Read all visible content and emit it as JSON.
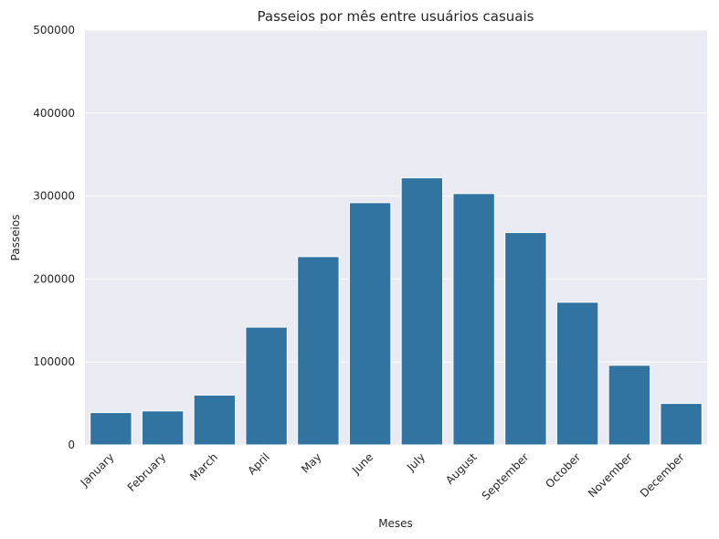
{
  "chart_data": {
    "type": "bar",
    "title": "Passeios por mês entre usuários casuais",
    "xlabel": "Meses",
    "ylabel": "Passeios",
    "categories": [
      "January",
      "February",
      "March",
      "April",
      "May",
      "June",
      "July",
      "August",
      "September",
      "October",
      "November",
      "December"
    ],
    "values": [
      39000,
      41000,
      60000,
      142000,
      227000,
      292000,
      322000,
      303000,
      256000,
      172000,
      96000,
      50000
    ],
    "ylim": [
      0,
      500000
    ],
    "yticks": [
      "0",
      "100000",
      "200000",
      "300000",
      "400000",
      "500000"
    ],
    "grid": true,
    "bar_color": "#3274a1",
    "plot_background": "#eaeaf2",
    "grid_color": "#ffffff"
  }
}
